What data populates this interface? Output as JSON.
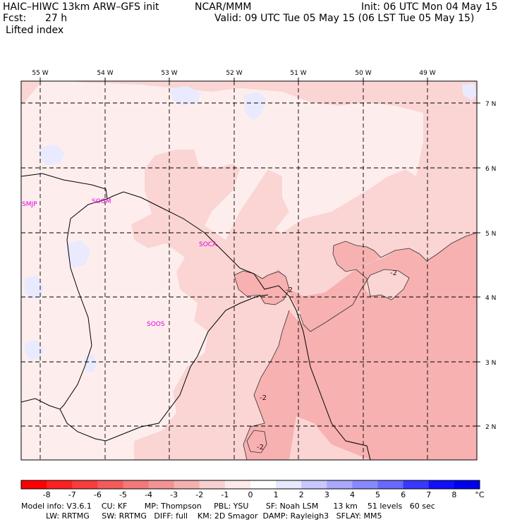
{
  "header": {
    "title": "HAIC–HIWC 13km ARW–GFS init",
    "center": "NCAR/MMM",
    "init": "Init: 06 UTC Mon 04 May 15",
    "fcst_label": "Fcst:",
    "fcst_value": "27 h",
    "valid": "Valid: 09 UTC Tue 05 May 15 (06 LST Tue 05 May 15)",
    "field": "Lifted index"
  },
  "map": {
    "lon_labels": [
      "55 W",
      "54 W",
      "53 W",
      "52 W",
      "51 W",
      "50 W",
      "49 W"
    ],
    "lat_labels": [
      "7 N",
      "6 N",
      "5 N",
      "4 N",
      "3 N",
      "2 N"
    ],
    "stations": [
      "SMJP",
      "SOGM",
      "SOCA",
      "SOOS"
    ],
    "contour_labels": [
      "-2",
      "-2",
      "-2",
      "-2"
    ],
    "colors": {
      "background": "#fdeeed",
      "level_minus1": "#fad5d4",
      "level_minus2": "#f6b1b0",
      "level_minus3": "#f7a4a5",
      "positive": "#eaeafe",
      "stations": "#e000e0"
    }
  },
  "colorbar": {
    "labels": [
      "-8",
      "-7",
      "-6",
      "-5",
      "-4",
      "-3",
      "-2",
      "-1",
      "0",
      "1",
      "2",
      "3",
      "4",
      "5",
      "6",
      "7",
      "8"
    ],
    "unit": "°C",
    "colors": [
      "#ff0000",
      "#fc2020",
      "#f93c3c",
      "#f55a5a",
      "#f47878",
      "#f39494",
      "#f5b1b1",
      "#f8d0d0",
      "#fce9e9",
      "#ffffff",
      "#e8e8fe",
      "#c8c8fe",
      "#a8a8fe",
      "#8888fe",
      "#6868fe",
      "#3838fe",
      "#1010fc",
      "#0000f0"
    ]
  },
  "footer": {
    "line1": "Model info: V3.6.1    CU: KF       MP: Thompson     PBL: YSU       SF: Noah LSM      13 km    51 levels   60 sec",
    "line2": "          LW: RRTMG     SW: RRTMG   DIFF: full    KM: 2D Smagor  DAMP: Rayleigh3   SFLAY: MM5"
  }
}
